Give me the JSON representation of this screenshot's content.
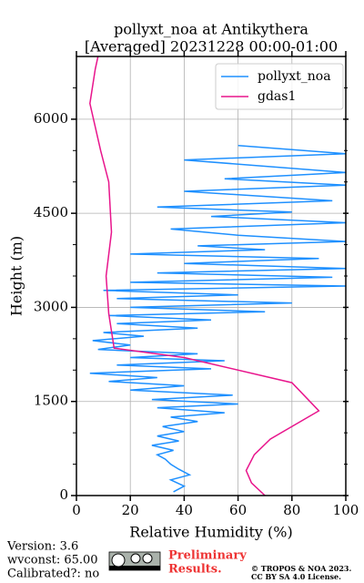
{
  "chart_data": {
    "type": "line",
    "title": "pollyxt_noa at Antikythera",
    "subtitle": "[Averaged] 20231228 00:00-01:00",
    "xlabel": "Relative Humidity (%)",
    "ylabel": "Height (m)",
    "xlim": [
      0,
      100
    ],
    "ylim": [
      0,
      7000
    ],
    "xticks": [
      0,
      20,
      40,
      60,
      80,
      100
    ],
    "yticks": [
      0,
      1500,
      3000,
      4500,
      6000
    ],
    "yticks_minor": [
      500,
      1000,
      2000,
      2500,
      3500,
      4000,
      5000,
      5500,
      6500
    ],
    "grid": true,
    "legend": "upper right",
    "series": [
      {
        "name": "pollyxt_noa",
        "color": "#1e90ff",
        "x": [
          36,
          40,
          35,
          42,
          38,
          35,
          33,
          30,
          36,
          28,
          38,
          30,
          40,
          32,
          45,
          35,
          55,
          30,
          60,
          28,
          58,
          20,
          40,
          12,
          30,
          5,
          50,
          15,
          55,
          20,
          45,
          8,
          20,
          6,
          25,
          10,
          45,
          15,
          50,
          12,
          70,
          20,
          80,
          15,
          60,
          10,
          100,
          20,
          95,
          30,
          100,
          40,
          90,
          20,
          70,
          45,
          100,
          60,
          35,
          100,
          50,
          80,
          30,
          95,
          40,
          100,
          55,
          100,
          40,
          100,
          60
        ],
        "y": [
          60,
          150,
          250,
          330,
          420,
          500,
          580,
          650,
          720,
          800,
          870,
          950,
          1020,
          1100,
          1180,
          1250,
          1320,
          1400,
          1460,
          1530,
          1600,
          1680,
          1750,
          1820,
          1880,
          1950,
          2020,
          2080,
          2150,
          2200,
          2260,
          2330,
          2400,
          2470,
          2540,
          2600,
          2670,
          2740,
          2800,
          2870,
          2930,
          3000,
          3070,
          3140,
          3200,
          3270,
          3340,
          3400,
          3480,
          3550,
          3620,
          3700,
          3780,
          3850,
          3920,
          3980,
          4050,
          4150,
          4250,
          4350,
          4450,
          4520,
          4600,
          4700,
          4850,
          4950,
          5050,
          5150,
          5350,
          5450,
          5580
        ]
      },
      {
        "name": "gdas1",
        "color": "#e8158c",
        "x": [
          70,
          65,
          63,
          66,
          72,
          90,
          80,
          40,
          14,
          12,
          11,
          13,
          12,
          9,
          5,
          7,
          8
        ],
        "y": [
          0,
          200,
          400,
          650,
          900,
          1350,
          1800,
          2200,
          2350,
          2900,
          3500,
          4200,
          5000,
          5500,
          6250,
          6800,
          7000
        ]
      }
    ],
    "footer": {
      "version": "Version: 3.6",
      "wvconst": "wvconst:  65.00",
      "calibrated": "Calibrated?: no",
      "preliminary": [
        "Preliminary",
        "Results."
      ],
      "copyright": [
        "© TROPOS & NOA 2023.",
        "CC BY SA 4.0 License."
      ]
    }
  }
}
